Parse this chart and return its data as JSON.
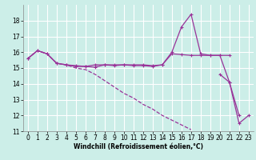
{
  "xlabel": "Windchill (Refroidissement éolien,°C)",
  "bg_color": "#cceee8",
  "grid_color": "#ffffff",
  "line_color": "#993399",
  "x_values": [
    0,
    1,
    2,
    3,
    4,
    5,
    6,
    7,
    8,
    9,
    10,
    11,
    12,
    13,
    14,
    15,
    16,
    17,
    18,
    19,
    20,
    21,
    22,
    23
  ],
  "line1_y": [
    15.6,
    16.1,
    15.9,
    15.3,
    15.2,
    15.1,
    15.1,
    15.2,
    15.2,
    15.2,
    15.2,
    15.2,
    15.2,
    15.15,
    15.2,
    15.9,
    15.85,
    15.8,
    15.8,
    15.8,
    15.8,
    15.8,
    null,
    null
  ],
  "line2_y": [
    15.6,
    16.1,
    15.9,
    15.3,
    15.2,
    15.15,
    15.1,
    15.05,
    15.2,
    15.15,
    15.2,
    15.15,
    15.15,
    15.1,
    15.2,
    16.0,
    17.6,
    18.4,
    15.9,
    15.8,
    15.8,
    14.1,
    12.0,
    null
  ],
  "line3_y": [
    15.6,
    16.1,
    15.9,
    15.3,
    15.2,
    15.0,
    14.9,
    14.6,
    14.2,
    13.8,
    13.4,
    13.1,
    12.7,
    12.4,
    12.0,
    11.7,
    11.4,
    11.1,
    null,
    null,
    null,
    null,
    null,
    null
  ],
  "line4_y": [
    null,
    null,
    null,
    null,
    null,
    null,
    null,
    null,
    null,
    null,
    null,
    null,
    null,
    null,
    null,
    null,
    null,
    null,
    null,
    null,
    14.6,
    14.1,
    11.5,
    12.0
  ],
  "ylim": [
    11,
    19
  ],
  "xlim": [
    -0.5,
    23.5
  ],
  "yticks": [
    11,
    12,
    13,
    14,
    15,
    16,
    17,
    18
  ],
  "xticks": [
    0,
    1,
    2,
    3,
    4,
    5,
    6,
    7,
    8,
    9,
    10,
    11,
    12,
    13,
    14,
    15,
    16,
    17,
    18,
    19,
    20,
    21,
    22,
    23
  ],
  "tick_fontsize": 5.5,
  "xlabel_fontsize": 5.5
}
